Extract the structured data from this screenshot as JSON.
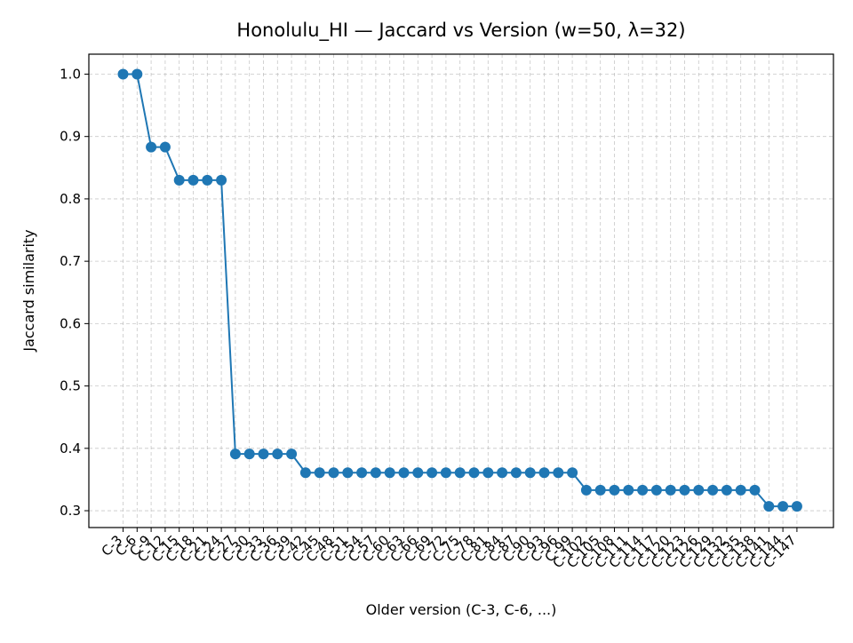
{
  "chart_data": {
    "type": "line",
    "title": "Honolulu_HI — Jaccard vs Version (w=50, λ=32)",
    "xlabel": "Older version (C-3, C-6, ...)",
    "ylabel": "Jaccard similarity",
    "ylim": [
      0.273,
      1.032
    ],
    "yticks": [
      0.3,
      0.4,
      0.5,
      0.6,
      0.7,
      0.8,
      0.9,
      1.0
    ],
    "ytick_labels": [
      "0.3",
      "0.4",
      "0.5",
      "0.6",
      "0.7",
      "0.8",
      "0.9",
      "1.0"
    ],
    "grid": true,
    "series_color": "#1f77b4",
    "categories": [
      "C-3",
      "C-6",
      "C-9",
      "C-12",
      "C-15",
      "C-18",
      "C-21",
      "C-24",
      "C-27",
      "C-30",
      "C-33",
      "C-36",
      "C-39",
      "C-42",
      "C-45",
      "C-48",
      "C-51",
      "C-54",
      "C-57",
      "C-60",
      "C-63",
      "C-66",
      "C-69",
      "C-72",
      "C-75",
      "C-78",
      "C-81",
      "C-84",
      "C-87",
      "C-90",
      "C-93",
      "C-96",
      "C-99",
      "C-102",
      "C-105",
      "C-108",
      "C-111",
      "C-114",
      "C-117",
      "C-120",
      "C-123",
      "C-126",
      "C-129",
      "C-132",
      "C-135",
      "C-138",
      "C-141",
      "C-144",
      "C-147"
    ],
    "values": [
      1.0,
      1.0,
      0.883,
      0.883,
      0.83,
      0.83,
      0.83,
      0.83,
      0.391,
      0.391,
      0.391,
      0.391,
      0.391,
      0.361,
      0.361,
      0.361,
      0.361,
      0.361,
      0.361,
      0.361,
      0.361,
      0.361,
      0.361,
      0.361,
      0.361,
      0.361,
      0.361,
      0.361,
      0.361,
      0.361,
      0.361,
      0.361,
      0.361,
      0.333,
      0.333,
      0.333,
      0.333,
      0.333,
      0.333,
      0.333,
      0.333,
      0.333,
      0.333,
      0.333,
      0.333,
      0.333,
      0.307,
      0.307,
      0.307
    ]
  }
}
